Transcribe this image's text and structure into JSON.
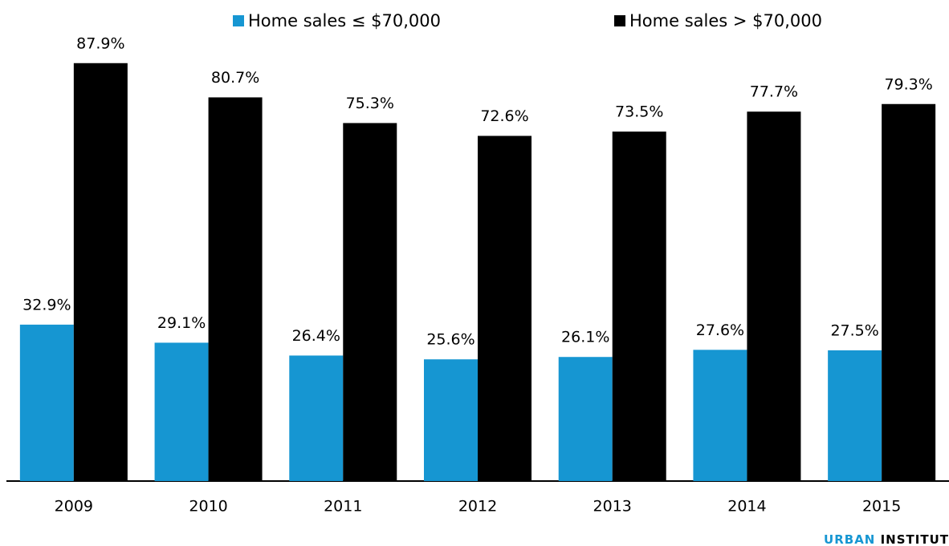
{
  "chart_data": {
    "type": "bar",
    "categories": [
      "2009",
      "2010",
      "2011",
      "2012",
      "2013",
      "2014",
      "2015"
    ],
    "series": [
      {
        "name": "Home sales ≤ $70,000",
        "color": "#1696d2",
        "values": [
          32.9,
          29.1,
          26.4,
          25.6,
          26.1,
          27.6,
          27.5
        ],
        "value_labels": [
          "32.9%",
          "29.1%",
          "26.4%",
          "25.6%",
          "26.1%",
          "27.6%",
          "27.5%"
        ]
      },
      {
        "name": "Home sales > $70,000",
        "color": "#000000",
        "values": [
          87.9,
          80.7,
          75.3,
          72.6,
          73.5,
          77.7,
          79.3
        ],
        "value_labels": [
          "87.9%",
          "80.7%",
          "75.3%",
          "72.6%",
          "73.5%",
          "77.7%",
          "79.3%"
        ]
      }
    ],
    "ylim": [
      0,
      100
    ],
    "legend": "top"
  },
  "footer": {
    "brand_1": "URBAN",
    "brand_2": "INSTITUT"
  }
}
